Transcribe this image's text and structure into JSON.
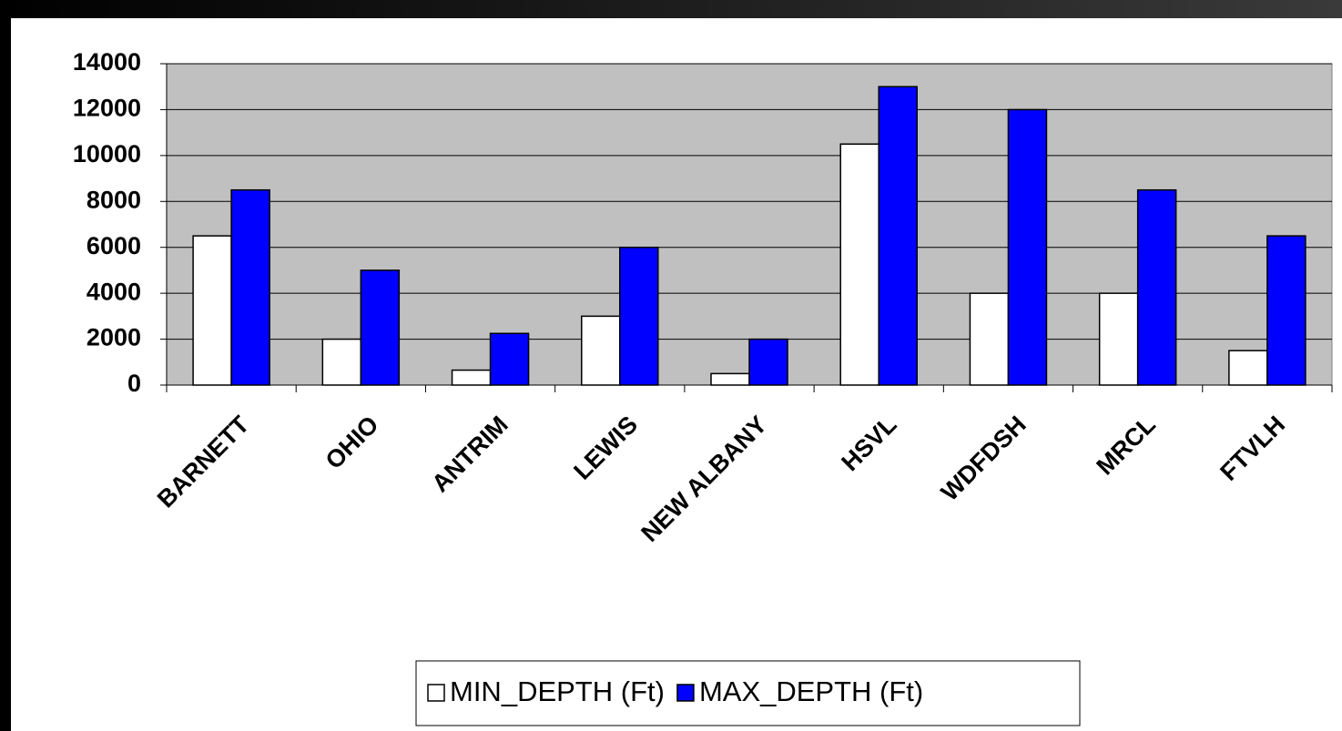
{
  "chart_data": {
    "type": "bar",
    "categories": [
      "BARNETT",
      "OHIO",
      "ANTRIM",
      "LEWIS",
      "NEW ALBANY",
      "HSVL",
      "WDFDSH",
      "MRCL",
      "FTVLH"
    ],
    "series": [
      {
        "name": "MIN_DEPTH (Ft)",
        "color": "#ffffff",
        "values": [
          6500,
          2000,
          650,
          3000,
          500,
          10500,
          4000,
          4000,
          1500
        ]
      },
      {
        "name": "MAX_DEPTH (Ft)",
        "color": "#0000ff",
        "values": [
          8500,
          5000,
          2250,
          6000,
          2000,
          13000,
          12000,
          8500,
          6500
        ]
      }
    ],
    "ylim": [
      0,
      14000
    ],
    "yticks": [
      0,
      2000,
      4000,
      6000,
      8000,
      10000,
      12000,
      14000
    ],
    "grid": true,
    "plot_background": "#c0c0c0",
    "legend": "bottom"
  }
}
